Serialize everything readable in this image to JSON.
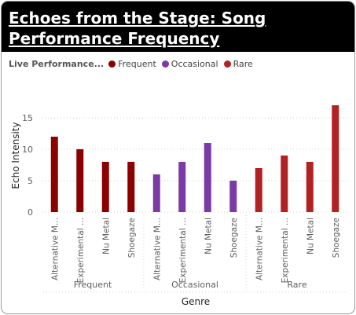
{
  "title": "Echoes from the Stage: Song Performance Frequency",
  "legend": {
    "title": "Live Performance...",
    "items": [
      {
        "label": "Frequent",
        "color": "#8b0000"
      },
      {
        "label": "Occasional",
        "color": "#7b3aa6"
      },
      {
        "label": "Rare",
        "color": "#b22222"
      }
    ]
  },
  "chart_data": {
    "type": "bar",
    "title": "Echoes from the Stage: Song Performance Frequency",
    "xlabel": "Genre",
    "ylabel": "Echo Intensity",
    "ylim": [
      0,
      17
    ],
    "yticks": [
      0,
      5,
      10,
      15
    ],
    "grid": true,
    "legend_position": "top-left",
    "groups": [
      {
        "name": "Frequent",
        "color": "#8b0000",
        "categories": [
          "Alternative M...",
          "Experimental ...",
          "Nu Metal",
          "Shoegaze"
        ],
        "values": [
          12,
          10,
          8,
          8
        ]
      },
      {
        "name": "Occasional",
        "color": "#7b3aa6",
        "categories": [
          "Alternative M...",
          "Experimental ...",
          "Nu Metal",
          "Shoegaze"
        ],
        "values": [
          6,
          8,
          11,
          5
        ]
      },
      {
        "name": "Rare",
        "color": "#b22222",
        "categories": [
          "Alternative M...",
          "Experimental ...",
          "Nu Metal",
          "Shoegaze"
        ],
        "values": [
          7,
          9,
          8,
          17
        ]
      }
    ]
  }
}
